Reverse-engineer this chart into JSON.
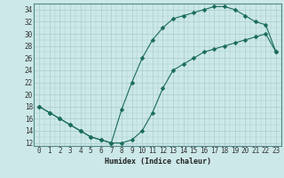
{
  "xlabel": "Humidex (Indice chaleur)",
  "background_color": "#cce8e8",
  "grid_color": "#aacccc",
  "line_color": "#1a6b5a",
  "xlim": [
    -0.5,
    23.5
  ],
  "ylim": [
    11.5,
    35
  ],
  "xticks": [
    0,
    1,
    2,
    3,
    4,
    5,
    6,
    7,
    8,
    9,
    10,
    11,
    12,
    13,
    14,
    15,
    16,
    17,
    18,
    19,
    20,
    21,
    22,
    23
  ],
  "yticks": [
    12,
    14,
    16,
    18,
    20,
    22,
    24,
    26,
    28,
    30,
    32,
    34
  ],
  "curve1_x": [
    0,
    1,
    2,
    3,
    4,
    5,
    6,
    7,
    8,
    9,
    10,
    11,
    12,
    13,
    14,
    15,
    16,
    17,
    18,
    19,
    20,
    21,
    22,
    23
  ],
  "curve1_y": [
    18,
    17,
    16,
    15,
    14,
    13,
    12.5,
    12,
    17.5,
    22,
    26,
    29,
    31,
    32.5,
    33,
    33.5,
    34,
    34.5,
    34.5,
    34,
    33,
    32,
    31.5,
    27
  ],
  "curve2_x": [
    0,
    1,
    2,
    3,
    4,
    5,
    6,
    7,
    8,
    9,
    10,
    11,
    12,
    13,
    14,
    15,
    16,
    17,
    18,
    19,
    20,
    21,
    22,
    23
  ],
  "curve2_y": [
    18,
    17,
    16,
    15,
    14,
    13,
    12.5,
    12,
    12,
    12.5,
    14,
    17,
    21,
    24,
    25,
    26,
    27,
    27.5,
    28,
    28.5,
    29,
    29.5,
    30,
    27
  ],
  "markersize": 2.5
}
